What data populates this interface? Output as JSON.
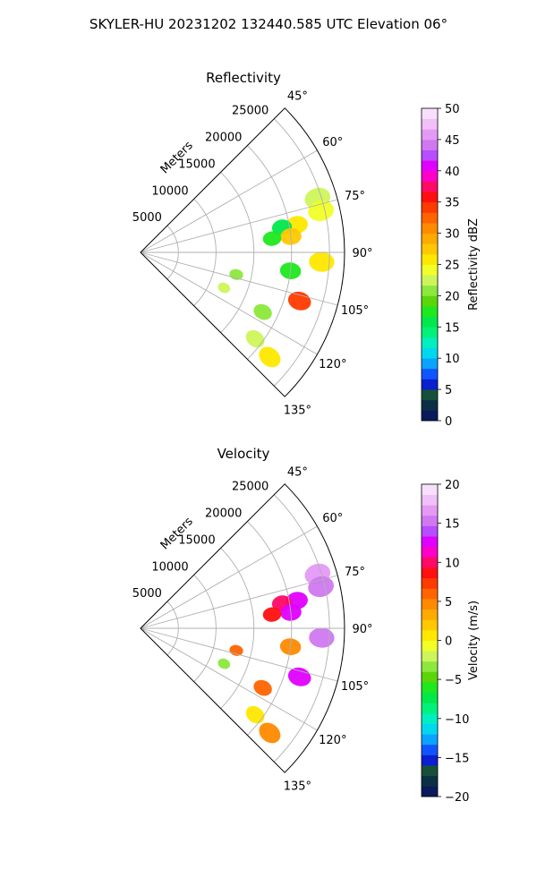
{
  "figure": {
    "title": "SKYLER-HU  20231202  132440.585 UTC Elevation 06°"
  },
  "chart_data": [
    {
      "type": "polar-sector",
      "title": "Reflectivity",
      "range_label": "Meters",
      "range_ticks": [
        5000,
        10000,
        15000,
        20000,
        25000
      ],
      "range_max": 27000,
      "azimuth_ticks": [
        "45°",
        "60°",
        "75°",
        "90°",
        "105°",
        "120°",
        "135°"
      ],
      "azimuth_range": [
        45,
        135
      ],
      "grid": true,
      "colorbar": {
        "label": "Reflectivity dBZ",
        "ticks": [
          "0",
          "5",
          "10",
          "15",
          "20",
          "25",
          "30",
          "35",
          "40",
          "45",
          "50"
        ],
        "vmin": 0,
        "vmax": 50,
        "colors": [
          "#0a1a5a",
          "#0b2f44",
          "#16503a",
          "#0a1fd0",
          "#0f55ff",
          "#0aa3ff",
          "#00d8ef",
          "#00eec0",
          "#00f27a",
          "#00e84c",
          "#1ee81e",
          "#5cd60a",
          "#8ce83c",
          "#cdf55a",
          "#f0ff28",
          "#ffe800",
          "#ffc800",
          "#ffaa00",
          "#ff8a00",
          "#ff6400",
          "#ff3a00",
          "#ff1010",
          "#ff0a64",
          "#ff00c8",
          "#e000ff",
          "#b84cff",
          "#d078f0",
          "#e49af5",
          "#f0c0f8",
          "#f8e0fc"
        ]
      },
      "echoes": [
        {
          "az": 73,
          "r": 24500,
          "value": 22
        },
        {
          "az": 77,
          "r": 24500,
          "value": 24
        },
        {
          "az": 80,
          "r": 21000,
          "value": 26
        },
        {
          "az": 80,
          "r": 19000,
          "value": 16
        },
        {
          "az": 84,
          "r": 20000,
          "value": 28
        },
        {
          "az": 84,
          "r": 17500,
          "value": 18
        },
        {
          "az": 93,
          "r": 24000,
          "value": 25
        },
        {
          "az": 97,
          "r": 20000,
          "value": 18
        },
        {
          "az": 103,
          "r": 13000,
          "value": 20
        },
        {
          "az": 107,
          "r": 22000,
          "value": 34
        },
        {
          "az": 113,
          "r": 12000,
          "value": 22
        },
        {
          "az": 116,
          "r": 18000,
          "value": 20
        },
        {
          "az": 127,
          "r": 19000,
          "value": 22
        },
        {
          "az": 129,
          "r": 22000,
          "value": 26
        }
      ]
    },
    {
      "type": "polar-sector",
      "title": "Velocity",
      "range_label": "Meters",
      "range_ticks": [
        5000,
        10000,
        15000,
        20000,
        25000
      ],
      "range_max": 27000,
      "azimuth_ticks": [
        "45°",
        "60°",
        "75°",
        "90°",
        "105°",
        "120°",
        "135°"
      ],
      "azimuth_range": [
        45,
        135
      ],
      "grid": true,
      "colorbar": {
        "label": "Velocity (m/s)",
        "ticks": [
          "−20",
          "−15",
          "−10",
          "−5",
          "0",
          "5",
          "10",
          "15",
          "20"
        ],
        "vmin": -20,
        "vmax": 20,
        "colors": [
          "#0a1a5a",
          "#0b2f44",
          "#16503a",
          "#0a1fd0",
          "#0f55ff",
          "#0aa3ff",
          "#00d8ef",
          "#00eec0",
          "#00f27a",
          "#00e84c",
          "#1ee81e",
          "#5cd60a",
          "#8ce83c",
          "#cdf55a",
          "#f0ff28",
          "#ffe800",
          "#ffc800",
          "#ffaa00",
          "#ff8a00",
          "#ff6400",
          "#ff3a00",
          "#ff1010",
          "#ff0a64",
          "#ff00c8",
          "#e000ff",
          "#b84cff",
          "#d078f0",
          "#e49af5",
          "#f0c0f8",
          "#f8e0fc"
        ]
      },
      "echoes": [
        {
          "az": 73,
          "r": 24500,
          "value": 16
        },
        {
          "az": 77,
          "r": 24500,
          "value": 15
        },
        {
          "az": 80,
          "r": 21000,
          "value": 12
        },
        {
          "az": 80,
          "r": 19000,
          "value": 10
        },
        {
          "az": 84,
          "r": 20000,
          "value": 13
        },
        {
          "az": 84,
          "r": 17500,
          "value": 9
        },
        {
          "az": 93,
          "r": 24000,
          "value": 15
        },
        {
          "az": 97,
          "r": 20000,
          "value": 5
        },
        {
          "az": 103,
          "r": 13000,
          "value": 6
        },
        {
          "az": 107,
          "r": 22000,
          "value": 13
        },
        {
          "az": 113,
          "r": 12000,
          "value": -3
        },
        {
          "az": 116,
          "r": 18000,
          "value": 6
        },
        {
          "az": 127,
          "r": 19000,
          "value": 1
        },
        {
          "az": 129,
          "r": 22000,
          "value": 4
        }
      ]
    }
  ]
}
